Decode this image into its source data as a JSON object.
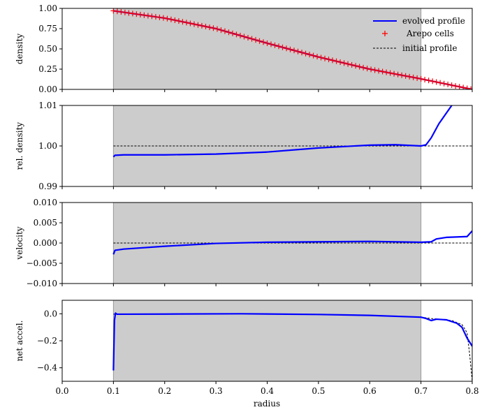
{
  "figure": {
    "xlabel": "radius",
    "x_ticks": [
      "0.0",
      "0.1",
      "0.2",
      "0.3",
      "0.4",
      "0.5",
      "0.6",
      "0.7",
      "0.8"
    ],
    "shaded_region": [
      0.1,
      0.7
    ],
    "colors": {
      "evolved": "#0000ff",
      "cells": "#ff0000",
      "initial": "#000000",
      "shade": "#cccccc"
    }
  },
  "legend": {
    "placement": "top-right",
    "entries": [
      {
        "label": "evolved profile",
        "style": "line-blue"
      },
      {
        "label": "Arepo cells",
        "style": "marker-red-plus"
      },
      {
        "label": "initial profile",
        "style": "dashed-black"
      }
    ]
  },
  "chart_data": [
    {
      "type": "line",
      "ylabel": "density",
      "xlim": [
        0.0,
        0.8
      ],
      "ylim": [
        0.0,
        1.0
      ],
      "y_ticks": [
        "0.00",
        "0.25",
        "0.50",
        "0.75",
        "1.00"
      ],
      "y_tick_values": [
        0.0,
        0.25,
        0.5,
        0.75,
        1.0
      ],
      "series": [
        {
          "name": "evolved profile",
          "x": [
            0.1,
            0.2,
            0.3,
            0.4,
            0.5,
            0.6,
            0.7,
            0.8
          ],
          "y": [
            0.97,
            0.88,
            0.75,
            0.57,
            0.4,
            0.25,
            0.13,
            0.0
          ]
        },
        {
          "name": "Arepo cells",
          "x": [
            0.1,
            0.8
          ],
          "y": [
            0.97,
            0.0
          ],
          "note": "dense markers along profile"
        },
        {
          "name": "initial profile",
          "x": [
            0.1,
            0.2,
            0.3,
            0.4,
            0.5,
            0.6,
            0.7,
            0.8
          ],
          "y": [
            0.97,
            0.88,
            0.75,
            0.57,
            0.4,
            0.25,
            0.13,
            0.0
          ]
        }
      ]
    },
    {
      "type": "line",
      "ylabel": "rel. density",
      "xlim": [
        0.0,
        0.8
      ],
      "ylim": [
        0.99,
        1.01
      ],
      "y_ticks": [
        "0.99",
        "1.00",
        "1.01"
      ],
      "y_tick_values": [
        0.99,
        1.0,
        1.01
      ],
      "series": [
        {
          "name": "evolved profile",
          "x": [
            0.1,
            0.103,
            0.12,
            0.2,
            0.3,
            0.4,
            0.5,
            0.6,
            0.65,
            0.7,
            0.71,
            0.72,
            0.735,
            0.76
          ],
          "y": [
            0.9973,
            0.9977,
            0.9978,
            0.9978,
            0.998,
            0.9985,
            0.9995,
            1.0002,
            1.0003,
            1.0,
            1.0003,
            1.002,
            1.0055,
            1.01
          ]
        },
        {
          "name": "initial profile",
          "x": [
            0.1,
            0.8
          ],
          "y": [
            1.0,
            1.0
          ]
        }
      ]
    },
    {
      "type": "line",
      "ylabel": "velocity",
      "xlim": [
        0.0,
        0.8
      ],
      "ylim": [
        -0.01,
        0.01
      ],
      "y_ticks": [
        "0.010",
        "0.005",
        "0.000",
        "−0.005",
        "−0.010"
      ],
      "y_tick_values": [
        0.01,
        0.005,
        0.0,
        -0.005,
        -0.01
      ],
      "series": [
        {
          "name": "evolved profile",
          "x": [
            0.1,
            0.103,
            0.12,
            0.2,
            0.3,
            0.4,
            0.5,
            0.6,
            0.7,
            0.72,
            0.73,
            0.75,
            0.79,
            0.8
          ],
          "y": [
            -0.0028,
            -0.0018,
            -0.0015,
            -0.0008,
            -0.0001,
            0.0002,
            0.0003,
            0.0004,
            0.0002,
            0.0003,
            0.001,
            0.0014,
            0.0016,
            0.003
          ]
        },
        {
          "name": "initial profile",
          "x": [
            0.1,
            0.8
          ],
          "y": [
            0.0,
            0.0
          ]
        }
      ]
    },
    {
      "type": "line",
      "ylabel": "net accel.",
      "xlim": [
        0.0,
        0.8
      ],
      "ylim": [
        -0.5,
        0.1
      ],
      "y_ticks": [
        "0.0",
        "−0.2",
        "−0.4"
      ],
      "y_tick_values": [
        0.0,
        -0.2,
        -0.4
      ],
      "series": [
        {
          "name": "evolved profile",
          "x": [
            0.1,
            0.102,
            0.104,
            0.107,
            0.2,
            0.35,
            0.5,
            0.6,
            0.7,
            0.71,
            0.72,
            0.73,
            0.75,
            0.77,
            0.78,
            0.79,
            0.8
          ],
          "y": [
            -0.42,
            -0.05,
            0.005,
            -0.003,
            -0.002,
            0.0,
            -0.005,
            -0.012,
            -0.025,
            -0.035,
            -0.05,
            -0.04,
            -0.045,
            -0.07,
            -0.1,
            -0.18,
            -0.24
          ]
        },
        {
          "name": "initial profile",
          "x": [
            0.1,
            0.2,
            0.35,
            0.5,
            0.6,
            0.7,
            0.72,
            0.74,
            0.76,
            0.78,
            0.79,
            0.795,
            0.8
          ],
          "y": [
            -0.003,
            -0.002,
            0.0,
            -0.005,
            -0.012,
            -0.025,
            -0.035,
            -0.042,
            -0.05,
            -0.08,
            -0.14,
            -0.3,
            -0.5
          ]
        }
      ]
    }
  ]
}
